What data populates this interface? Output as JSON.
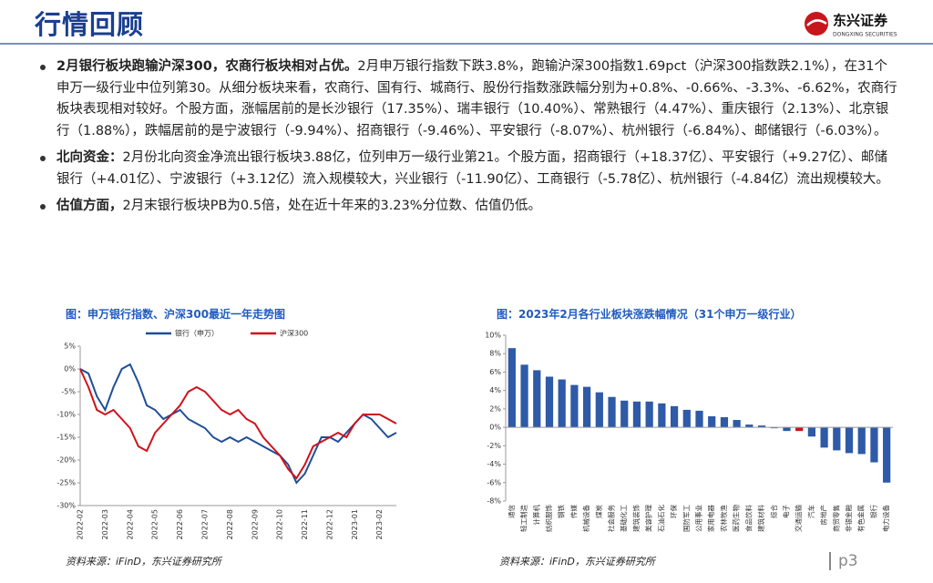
{
  "header": {
    "title": "行情回顾",
    "logo_name": "东兴证券",
    "logo_sub": "DONGXING SECURITIES"
  },
  "bullets": [
    {
      "lead": "2月银行板块跑输沪深300，农商行板块相对占优。",
      "text": "2月申万银行指数下跌3.8%，跑输沪深300指数1.69pct（沪深300指数跌2.1%），在31个申万一级行业中位列第30。从细分板块来看，农商行、国有行、城商行、股份行指数涨跌幅分别为+0.8%、-0.66%、-3.3%、-6.62%，农商行板块表现相对较好。个股方面，涨幅居前的是长沙银行（17.35%）、瑞丰银行（10.40%）、常熟银行（4.47%）、重庆银行（2.13%）、北京银行（1.88%），跌幅居前的是宁波银行（-9.94%）、招商银行（-9.46%）、平安银行（-8.07%）、杭州银行（-6.84%）、邮储银行（-6.03%）。"
    },
    {
      "lead": "北向资金：",
      "text": "2月份北向资金净流出银行板块3.88亿，位列申万一级行业第21。个股方面，招商银行（+18.37亿）、平安银行（+9.27亿）、邮储银行（+4.01亿）、宁波银行（+3.12亿）流入规模较大，兴业银行（-11.90亿）、工商银行（-5.78亿）、杭州银行（-4.84亿）流出规模较大。"
    },
    {
      "lead": "估值方面，",
      "text": "2月末银行板块PB为0.5倍，处在近十年来的3.23%分位数、估值仍低。"
    }
  ],
  "chart_data": [
    {
      "type": "line",
      "title": "图：申万银行指数、沪深300最近一年走势图",
      "x": [
        "2022-02",
        null,
        null,
        "2022-03",
        null,
        null,
        "2022-04",
        null,
        null,
        "2022-05",
        null,
        null,
        "2022-06",
        null,
        null,
        "2022-07",
        null,
        null,
        "2022-08",
        null,
        null,
        "2022-09",
        null,
        null,
        "2022-10",
        null,
        null,
        "2022-11",
        null,
        null,
        "2022-12",
        null,
        null,
        "2023-01",
        null,
        null,
        "2023-02",
        null,
        null
      ],
      "series": [
        {
          "name": "银行（申万）",
          "color": "#1f4e96",
          "values": [
            0,
            -1,
            -6,
            -9,
            -4,
            0,
            1,
            -3,
            -8,
            -9,
            -11,
            -10,
            -9,
            -11,
            -12,
            -13,
            -15,
            -16,
            -15,
            -16,
            -15,
            -16,
            -17,
            -18,
            -19,
            -21,
            -25,
            -23,
            -19,
            -15,
            -15,
            -16,
            -14,
            -12,
            -10,
            -11,
            -13,
            -15,
            -14
          ]
        },
        {
          "name": "沪深300",
          "color": "#d0111b",
          "values": [
            0,
            -4,
            -9,
            -10,
            -9,
            -11,
            -13,
            -17,
            -18,
            -14,
            -12,
            -10,
            -8,
            -5,
            -4,
            -5,
            -7,
            -9,
            -10,
            -9,
            -11,
            -12,
            -15,
            -17,
            -19,
            -22,
            -24,
            -21,
            -17,
            -16,
            -15,
            -14,
            -15,
            -12,
            -10,
            -10,
            -10,
            -11,
            -12
          ]
        }
      ],
      "ylim": [
        -30,
        5
      ],
      "yticks": [
        {
          "value": 5,
          "label": "5%"
        },
        {
          "value": 0,
          "label": "0%"
        },
        {
          "value": -5,
          "label": "-5%"
        },
        {
          "value": -10,
          "label": "-10%"
        },
        {
          "value": -15,
          "label": "-15%"
        },
        {
          "value": -20,
          "label": "-20%"
        },
        {
          "value": -25,
          "label": "-25%"
        },
        {
          "value": -30,
          "label": "-30%"
        }
      ],
      "legend": "top"
    },
    {
      "type": "bar",
      "title": "图：2023年2月各行业板块涨跌幅情况（31个申万一级行业）",
      "categories": [
        "通信",
        "轻工制造",
        "计算机",
        "纺织服饰",
        "钢铁",
        "传媒",
        "机械设备",
        "煤炭",
        "社会服务",
        "基础化工",
        "建筑装饰",
        "美容护理",
        "石油石化",
        "环保",
        "国防军工",
        "公用事业",
        "家用电器",
        "农林牧渔",
        "医药生物",
        "食品饮料",
        "建筑材料",
        "综合",
        "电子",
        "交通运输",
        "汽车",
        "房地产",
        "商贸零售",
        "非银金融",
        "有色金属",
        "银行",
        "电力设备"
      ],
      "values": [
        8.6,
        6.8,
        6.2,
        5.5,
        5.2,
        4.6,
        4.4,
        3.8,
        3.3,
        2.9,
        2.8,
        2.8,
        2.6,
        2.3,
        1.9,
        1.8,
        1.2,
        1.1,
        0.8,
        0.3,
        0.2,
        -0.1,
        -0.4,
        -0.4,
        -1.0,
        -2.2,
        -2.5,
        -2.8,
        -2.9,
        -3.8,
        -6.0
      ],
      "colors": [
        "#2e5aa7",
        "#2e5aa7",
        "#2e5aa7",
        "#2e5aa7",
        "#2e5aa7",
        "#2e5aa7",
        "#2e5aa7",
        "#2e5aa7",
        "#2e5aa7",
        "#2e5aa7",
        "#2e5aa7",
        "#2e5aa7",
        "#2e5aa7",
        "#2e5aa7",
        "#2e5aa7",
        "#2e5aa7",
        "#2e5aa7",
        "#2e5aa7",
        "#2e5aa7",
        "#2e5aa7",
        "#2e5aa7",
        "#2e5aa7",
        "#2e5aa7",
        "#d0111b",
        "#2e5aa7",
        "#2e5aa7",
        "#2e5aa7",
        "#2e5aa7",
        "#2e5aa7",
        "#2e5aa7",
        "#2e5aa7"
      ],
      "ylim": [
        -8,
        10
      ],
      "yticks": [
        {
          "value": 10,
          "label": "10%"
        },
        {
          "value": 8,
          "label": "8%"
        },
        {
          "value": 6,
          "label": "6%"
        },
        {
          "value": 4,
          "label": "4%"
        },
        {
          "value": 2,
          "label": "2%"
        },
        {
          "value": 0,
          "label": "0%"
        },
        {
          "value": -2,
          "label": "-2%"
        },
        {
          "value": -4,
          "label": "-4%"
        },
        {
          "value": -6,
          "label": "-6%"
        },
        {
          "value": -8,
          "label": "-8%"
        }
      ]
    }
  ],
  "footer": {
    "source_left": "资料来源：iFinD，东兴证券研究所",
    "source_right": "资料来源：iFinD，东兴证券研究所",
    "page": "p3"
  }
}
